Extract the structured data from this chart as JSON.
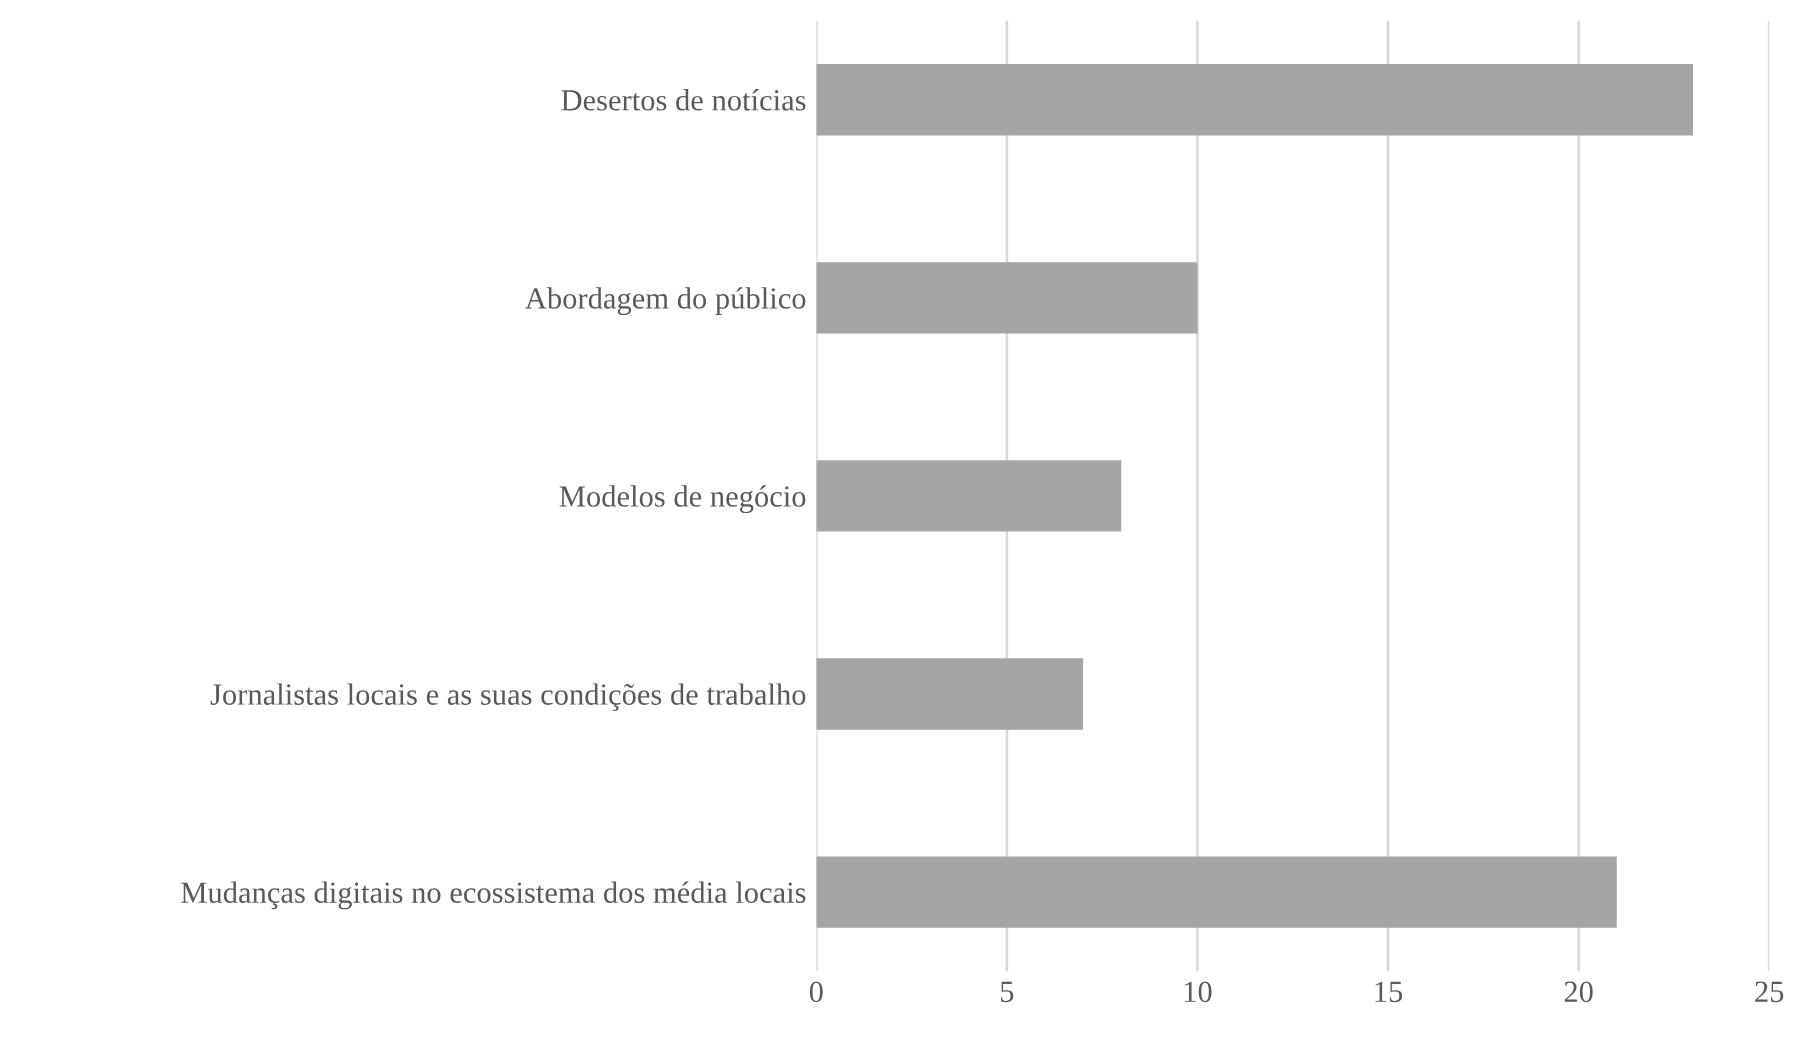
{
  "chart_data": {
    "type": "bar",
    "orientation": "horizontal",
    "categories": [
      "Desertos de notícias",
      "Abordagem do público",
      "Modelos de negócio",
      "Jornalistas locais e as suas condições de trabalho",
      "Mudanças digitais no ecossistema dos média locais"
    ],
    "values": [
      23,
      10,
      8,
      7,
      21
    ],
    "color": "#a5a5a5",
    "xlim": [
      0,
      25
    ],
    "xticks": [
      0,
      5,
      10,
      15,
      20,
      25
    ],
    "grid": "x"
  }
}
